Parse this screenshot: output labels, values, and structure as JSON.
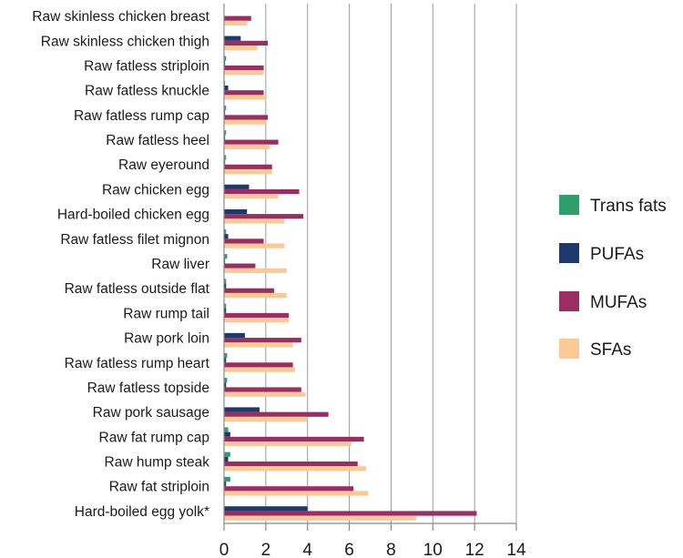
{
  "chart_data": {
    "type": "bar",
    "orientation": "horizontal",
    "title": "",
    "xlabel": "",
    "ylabel": "",
    "xlim": [
      0,
      14
    ],
    "xticks": [
      0,
      2,
      4,
      6,
      8,
      10,
      12,
      14
    ],
    "grid": true,
    "legend_position": "right",
    "categories": [
      "Raw skinless chicken breast",
      "Raw skinless chicken thigh",
      "Raw fatless striploin",
      "Raw fatless knuckle",
      "Raw fatless rump cap",
      "Raw fatless heel",
      "Raw eyeround",
      "Raw chicken egg",
      "Hard-boiled chicken egg",
      "Raw fatless filet mignon",
      "Raw liver",
      "Raw fatless outside flat",
      "Raw rump tail",
      "Raw pork loin",
      "Raw fatless rump heart",
      "Raw fatless topside",
      "Raw pork sausage",
      "Raw fat rump cap",
      "Raw hump steak",
      "Raw fat striploin",
      "Hard-boiled egg yolk*"
    ],
    "series": [
      {
        "name": "Trans fats",
        "color": "#2e9e6b",
        "values": [
          0,
          0,
          0.1,
          0.05,
          0.1,
          0.1,
          0.1,
          0,
          0,
          0.1,
          0.15,
          0.1,
          0.1,
          0,
          0.15,
          0.15,
          0,
          0.2,
          0.3,
          0.3,
          0
        ]
      },
      {
        "name": "PUFAs",
        "color": "#1e3a6a",
        "values": [
          0,
          0.8,
          0.05,
          0.2,
          0.05,
          0.05,
          0.05,
          1.2,
          1.1,
          0.2,
          0.05,
          0.1,
          0.1,
          1.0,
          0.1,
          0.1,
          1.7,
          0.3,
          0.2,
          0.1,
          4.0
        ]
      },
      {
        "name": "MUFAs",
        "color": "#9b2d63",
        "values": [
          1.3,
          2.1,
          1.9,
          1.9,
          2.1,
          2.6,
          2.3,
          3.6,
          3.8,
          1.9,
          1.5,
          2.4,
          3.1,
          3.7,
          3.3,
          3.7,
          5.0,
          6.7,
          6.4,
          6.2,
          12.1
        ]
      },
      {
        "name": "SFAs",
        "color": "#fbc995",
        "values": [
          1.1,
          1.6,
          1.9,
          2.0,
          2.0,
          2.2,
          2.3,
          2.6,
          2.9,
          2.9,
          3.0,
          3.0,
          3.1,
          3.3,
          3.4,
          3.9,
          4.0,
          6.1,
          6.8,
          6.9,
          9.2
        ]
      }
    ],
    "legend_order": [
      "Trans fats",
      "PUFAs",
      "MUFAs",
      "SFAs"
    ]
  }
}
